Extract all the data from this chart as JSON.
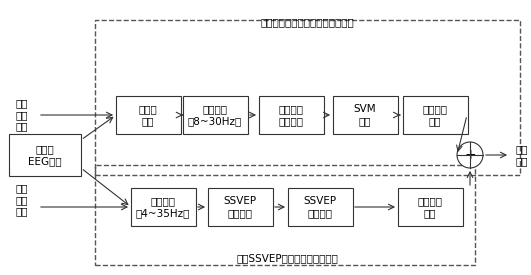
{
  "title_top": "基于运动想象的光标水平运动控制",
  "title_bottom": "基于SSVEP的光标垂直运动控制",
  "top_boxes": [
    "共平均\n参考",
    "带通滤波\n（8~30Hz）",
    "运动想象\n特征提取",
    "SVM\n分类",
    "水平坐标\n计算"
  ],
  "bottom_boxes": [
    "带通滤波\n（4~35Hz）",
    "SSVEP\n特征提取",
    "SSVEP\n频率识别",
    "垂直坐标\n计算"
  ],
  "left_label_top": "运动\n想象\n数据",
  "left_label_mid": "多通道\nEEG数据",
  "left_label_bot": "视觉\n注意\n数据",
  "output_label": "光标\n运动",
  "bg_color": "#ffffff",
  "box_edge": "#333333",
  "dashed_edge": "#555555",
  "arrow_color": "#333333",
  "font_size": 7.5,
  "label_font_size": 7.5
}
